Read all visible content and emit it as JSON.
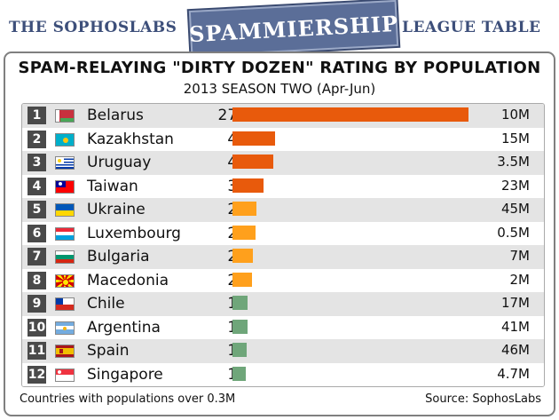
{
  "banner": {
    "left_text": "THE SOPHOSLABS",
    "badge_text": "SPAMMIERSHIP",
    "right_text": "LEAGUE TABLE"
  },
  "chart_data": {
    "type": "bar",
    "title": "SPAM-RELAYING \"DIRTY DOZEN\" RATING BY POPULATION",
    "subtitle": "2013 SEASON TWO (Apr-Jun)",
    "xlabel": "",
    "ylabel": "",
    "xlim": [
      0,
      271
    ],
    "categories": [
      "Belarus",
      "Kazakhstan",
      "Uruguay",
      "Taiwan",
      "Ukraine",
      "Luxembourg",
      "Bulgaria",
      "Macedonia",
      "Chile",
      "Argentina",
      "Spain",
      "Singapore"
    ],
    "ranks": [
      "1",
      "2",
      "3",
      "4",
      "5",
      "6",
      "7",
      "8",
      "9",
      "10",
      "11",
      "12"
    ],
    "values": [
      271,
      49,
      47,
      36,
      27,
      26,
      23,
      22,
      17,
      17,
      16,
      15
    ],
    "populations": [
      "10M",
      "15M",
      "3.5M",
      "23M",
      "45M",
      "0.5M",
      "7M",
      "2M",
      "17M",
      "41M",
      "46M",
      "4.7M"
    ],
    "bar_colors": [
      "#e85a0c",
      "#e85a0c",
      "#e85a0c",
      "#e85a0c",
      "#ffa01c",
      "#ffa01c",
      "#ffa01c",
      "#ffa01c",
      "#6fa67a",
      "#6fa67a",
      "#6fa67a",
      "#6fa67a"
    ],
    "flag_icons": [
      "belarus-flag-icon",
      "kazakhstan-flag-icon",
      "uruguay-flag-icon",
      "taiwan-flag-icon",
      "ukraine-flag-icon",
      "luxembourg-flag-icon",
      "bulgaria-flag-icon",
      "macedonia-flag-icon",
      "chile-flag-icon",
      "argentina-flag-icon",
      "spain-flag-icon",
      "singapore-flag-icon"
    ],
    "grid": false,
    "legend": "none"
  },
  "footer": {
    "note": "Countries with populations over 0.3M",
    "source": "Source: SophosLabs"
  }
}
